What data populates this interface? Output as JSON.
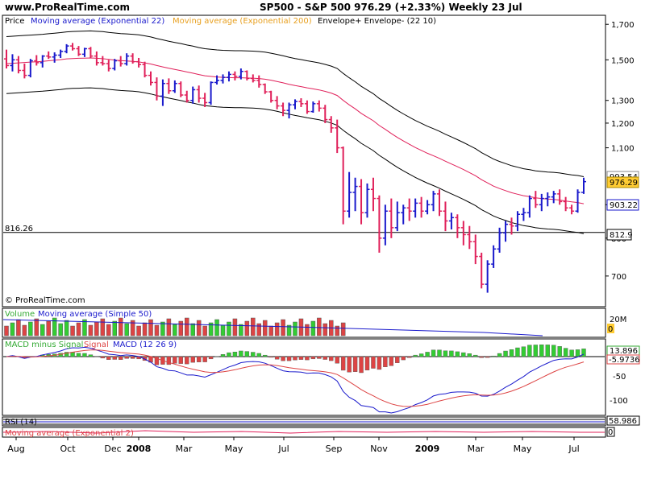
{
  "header": {
    "site": "www.ProRealTime.com",
    "title": "SP500 - S&P 500     976.29 (+2.33%)     Weekly  23 Jul"
  },
  "colors": {
    "up": "#1a1acc",
    "down": "#e0205a",
    "ma22": "#e0205a",
    "envelope": "#000000",
    "volume_up": "#33cc33",
    "volume_down": "#dd4444",
    "macd_pos": "#33cc33",
    "macd_neg": "#dd4444",
    "macd_line": "#1a1acc",
    "signal_line": "#dd4444",
    "price_label_bg": "#ffcc33"
  },
  "price_panel": {
    "legend": {
      "price": "Price",
      "ma22": "Moving average (Exponential 22)",
      "ma200": "Moving average (Exponential 200)",
      "envelope": "Envelope+ Envelope- (22 10)"
    },
    "watermark": "© ProRealTime.com",
    "hline_label": "816.26",
    "y_ticks": [
      "1,700",
      "1,500",
      "1,300",
      "1,200",
      "1,100",
      "900",
      "800",
      "700"
    ],
    "last_price_label": "976.29",
    "envelope_upper_label": "993.54",
    "ma_label": "903.22",
    "envelope_lower_label": "812.9"
  },
  "volume_panel": {
    "legend": {
      "volume": "Volume",
      "ma": "Moving average (Simple 50)"
    },
    "y_tick": "20M",
    "last_label": "0"
  },
  "macd_panel": {
    "legend": {
      "hist": "MACD minus Signal",
      "signal": "Signal",
      "macd": "MACD (12 26 9)"
    },
    "hist_label": "13.896",
    "signal_label": "-5.9736",
    "y_ticks": [
      "-50",
      "-100"
    ]
  },
  "rsi_panel": {
    "legend": {
      "rsi": "RSI (14)"
    },
    "label": "58.986"
  },
  "ma_panel": {
    "legend": {
      "ma": "Moving average (Exponential 2)"
    },
    "label": "0"
  },
  "x_ticks": [
    "Aug",
    "Oct",
    "Dec",
    "2008",
    "Mar",
    "May",
    "Jul",
    "Sep",
    "Nov",
    "2009",
    "Mar",
    "May",
    "Jul"
  ],
  "chart_data": {
    "type": "bar",
    "title": "SP500 - S&P 500",
    "timeframe": "Weekly",
    "y_scale": "log",
    "ylim": [
      630,
      1750
    ],
    "hline": 816.26,
    "ohlc": [
      [
        1505,
        1555,
        1455,
        1470
      ],
      [
        1470,
        1530,
        1440,
        1500
      ],
      [
        1500,
        1520,
        1430,
        1445
      ],
      [
        1445,
        1480,
        1405,
        1420
      ],
      [
        1420,
        1505,
        1410,
        1495
      ],
      [
        1495,
        1525,
        1470,
        1485
      ],
      [
        1485,
        1525,
        1460,
        1520
      ],
      [
        1520,
        1545,
        1505,
        1515
      ],
      [
        1515,
        1540,
        1485,
        1525
      ],
      [
        1525,
        1555,
        1510,
        1545
      ],
      [
        1545,
        1585,
        1535,
        1575
      ],
      [
        1575,
        1592,
        1550,
        1560
      ],
      [
        1560,
        1575,
        1520,
        1530
      ],
      [
        1530,
        1565,
        1515,
        1560
      ],
      [
        1560,
        1570,
        1510,
        1520
      ],
      [
        1520,
        1545,
        1470,
        1485
      ],
      [
        1485,
        1520,
        1470,
        1480
      ],
      [
        1480,
        1500,
        1440,
        1455
      ],
      [
        1455,
        1505,
        1445,
        1495
      ],
      [
        1495,
        1520,
        1465,
        1480
      ],
      [
        1480,
        1535,
        1470,
        1520
      ],
      [
        1520,
        1535,
        1480,
        1490
      ],
      [
        1490,
        1510,
        1460,
        1475
      ],
      [
        1475,
        1490,
        1410,
        1420
      ],
      [
        1420,
        1440,
        1370,
        1385
      ],
      [
        1385,
        1410,
        1300,
        1320
      ],
      [
        1320,
        1400,
        1275,
        1380
      ],
      [
        1380,
        1405,
        1330,
        1345
      ],
      [
        1345,
        1395,
        1335,
        1380
      ],
      [
        1380,
        1390,
        1315,
        1325
      ],
      [
        1325,
        1345,
        1290,
        1300
      ],
      [
        1300,
        1365,
        1285,
        1350
      ],
      [
        1350,
        1370,
        1290,
        1310
      ],
      [
        1310,
        1335,
        1270,
        1290
      ],
      [
        1290,
        1390,
        1280,
        1385
      ],
      [
        1385,
        1420,
        1375,
        1395
      ],
      [
        1395,
        1425,
        1380,
        1410
      ],
      [
        1410,
        1440,
        1390,
        1425
      ],
      [
        1425,
        1440,
        1395,
        1415
      ],
      [
        1415,
        1455,
        1400,
        1440
      ],
      [
        1440,
        1445,
        1395,
        1405
      ],
      [
        1405,
        1425,
        1385,
        1395
      ],
      [
        1395,
        1420,
        1360,
        1375
      ],
      [
        1375,
        1380,
        1330,
        1340
      ],
      [
        1340,
        1345,
        1290,
        1300
      ],
      [
        1300,
        1320,
        1260,
        1275
      ],
      [
        1275,
        1290,
        1230,
        1255
      ],
      [
        1255,
        1290,
        1220,
        1280
      ],
      [
        1280,
        1305,
        1260,
        1295
      ],
      [
        1295,
        1310,
        1270,
        1285
      ],
      [
        1285,
        1300,
        1240,
        1250
      ],
      [
        1250,
        1295,
        1245,
        1285
      ],
      [
        1285,
        1300,
        1250,
        1265
      ],
      [
        1265,
        1280,
        1200,
        1215
      ],
      [
        1215,
        1230,
        1160,
        1180
      ],
      [
        1180,
        1215,
        1080,
        1100
      ],
      [
        1100,
        1105,
        840,
        880
      ],
      [
        880,
        1010,
        860,
        940
      ],
      [
        940,
        990,
        880,
        960
      ],
      [
        960,
        985,
        840,
        875
      ],
      [
        875,
        970,
        860,
        950
      ],
      [
        950,
        990,
        880,
        920
      ],
      [
        920,
        930,
        760,
        800
      ],
      [
        800,
        900,
        780,
        880
      ],
      [
        880,
        920,
        800,
        830
      ],
      [
        830,
        910,
        820,
        875
      ],
      [
        875,
        900,
        840,
        890
      ],
      [
        890,
        920,
        850,
        880
      ],
      [
        880,
        920,
        860,
        905
      ],
      [
        905,
        925,
        860,
        880
      ],
      [
        880,
        915,
        870,
        900
      ],
      [
        900,
        945,
        880,
        935
      ],
      [
        935,
        950,
        865,
        880
      ],
      [
        880,
        910,
        820,
        850
      ],
      [
        850,
        875,
        825,
        860
      ],
      [
        860,
        870,
        800,
        830
      ],
      [
        830,
        850,
        780,
        810
      ],
      [
        810,
        835,
        770,
        790
      ],
      [
        790,
        810,
        730,
        750
      ],
      [
        750,
        760,
        670,
        680
      ],
      [
        680,
        740,
        660,
        730
      ],
      [
        730,
        780,
        720,
        770
      ],
      [
        770,
        830,
        760,
        815
      ],
      [
        815,
        850,
        790,
        840
      ],
      [
        840,
        860,
        810,
        835
      ],
      [
        835,
        880,
        820,
        870
      ],
      [
        870,
        890,
        850,
        875
      ],
      [
        875,
        930,
        860,
        920
      ],
      [
        920,
        945,
        890,
        900
      ],
      [
        900,
        935,
        880,
        920
      ],
      [
        920,
        940,
        895,
        925
      ],
      [
        925,
        945,
        905,
        935
      ],
      [
        935,
        950,
        900,
        910
      ],
      [
        910,
        925,
        880,
        890
      ],
      [
        890,
        900,
        870,
        880
      ],
      [
        880,
        950,
        875,
        940
      ],
      [
        940,
        990,
        935,
        976.29
      ]
    ],
    "series": [
      {
        "name": "Moving average (Exponential 22)",
        "values": [
          1480,
          1482,
          1484,
          1486,
          1488,
          1490,
          1492,
          1495,
          1498,
          1501,
          1505,
          1507,
          1508,
          1509,
          1510,
          1508,
          1506,
          1502,
          1499,
          1496,
          1494,
          1492,
          1489,
          1484,
          1478,
          1470,
          1463,
          1456,
          1450,
          1444,
          1437,
          1431,
          1424,
          1418,
          1415,
          1412,
          1410,
          1409,
          1408,
          1408,
          1407,
          1406,
          1404,
          1401,
          1396,
          1390,
          1383,
          1376,
          1370,
          1365,
          1359,
          1354,
          1349,
          1342,
          1334,
          1323,
          1300,
          1280,
          1262,
          1242,
          1226,
          1210,
          1190,
          1174,
          1157,
          1141,
          1127,
          1114,
          1101,
          1090,
          1079,
          1070,
          1060,
          1049,
          1039,
          1029,
          1019,
          1008,
          997,
          983,
          972,
          961,
          953,
          946,
          939,
          934,
          929,
          926,
          922,
          920,
          918,
          917,
          915,
          912,
          909,
          907,
          903.22
        ]
      }
    ],
    "envelope_pct": 10,
    "volume_visible_weeks": 57
  }
}
